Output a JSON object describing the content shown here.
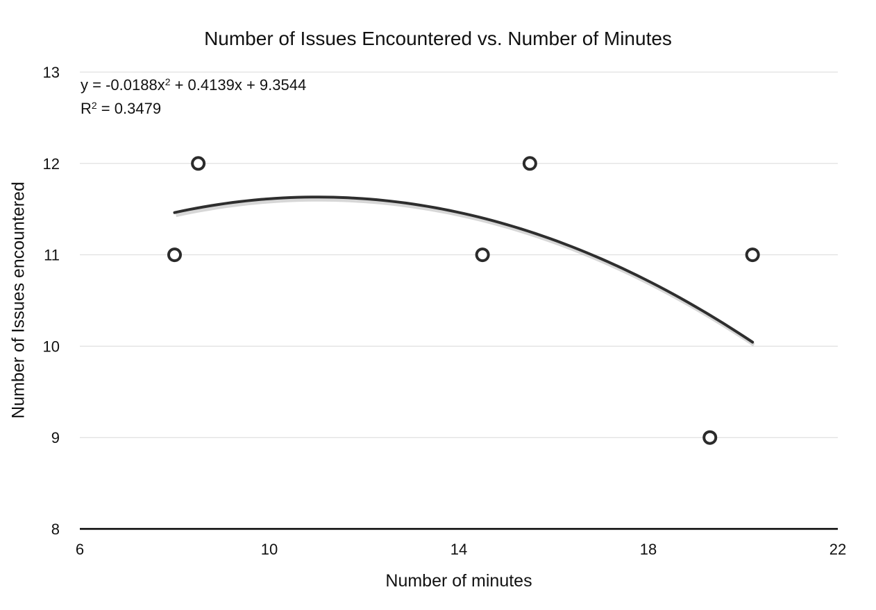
{
  "chart_data": {
    "type": "scatter",
    "title": "Number of Issues Encountered vs. Number of Minutes",
    "xlabel": "Number of minutes",
    "ylabel": "Number of Issues encountered",
    "xlim": [
      6,
      22
    ],
    "ylim": [
      8,
      13
    ],
    "x_ticks": [
      6,
      10,
      14,
      18,
      22
    ],
    "y_ticks": [
      8,
      9,
      10,
      11,
      12,
      13
    ],
    "grid": "horizontal",
    "points": [
      {
        "x": 8,
        "y": 11
      },
      {
        "x": 8.5,
        "y": 12
      },
      {
        "x": 14.5,
        "y": 11
      },
      {
        "x": 15.5,
        "y": 12
      },
      {
        "x": 19.3,
        "y": 9
      },
      {
        "x": 20.2,
        "y": 11
      }
    ],
    "trendline": {
      "type": "polynomial",
      "coefficients": {
        "a": -0.0188,
        "b": 0.4139,
        "c": 9.3544
      },
      "x_range": [
        8,
        20.2
      ],
      "equation_prefix": "y = -0.0188x",
      "equation_suffix": " + 0.4139x + 9.3544",
      "r_squared_prefix": "R",
      "r_squared_suffix": " = 0.3479",
      "superscript": "2"
    },
    "colors": {
      "marker": "#2b2b2b",
      "trendline": "#2e2e2e",
      "grid": "#d9d9d9",
      "axis": "#000000"
    }
  }
}
